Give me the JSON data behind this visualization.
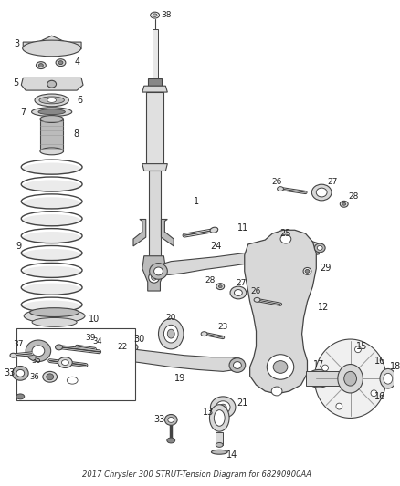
{
  "title": "2017 Chrysler 300 STRUT-Tension Diagram for 68290900AA",
  "background_color": "#ffffff",
  "figsize": [
    4.38,
    5.33
  ],
  "dpi": 100,
  "label_color": "#222222",
  "line_color": "#444444",
  "fill_light": "#d8d8d8",
  "fill_mid": "#bbbbbb",
  "fill_dark": "#888888"
}
